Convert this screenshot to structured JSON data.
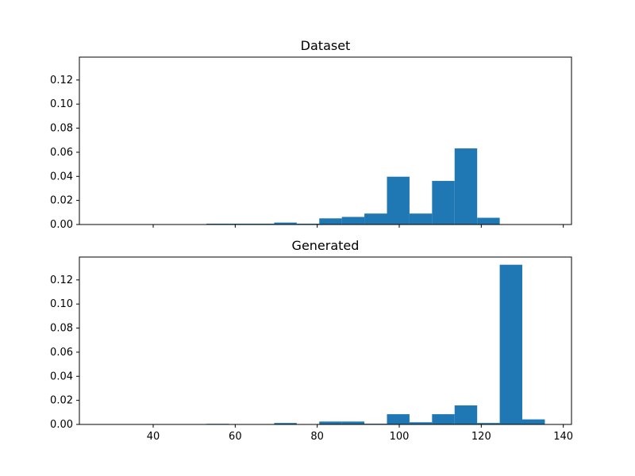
{
  "chart_data": [
    {
      "type": "bar",
      "title": "Dataset",
      "xlim": [
        22,
        142
      ],
      "ylim": [
        0,
        0.139
      ],
      "x_ticks": [
        40,
        60,
        80,
        100,
        120,
        140
      ],
      "x_tick_labels_visible": false,
      "y_ticks": [
        0.0,
        0.02,
        0.04,
        0.06,
        0.08,
        0.1,
        0.12
      ],
      "y_tick_labels": [
        "0.00",
        "0.02",
        "0.04",
        "0.06",
        "0.08",
        "0.10",
        "0.12"
      ],
      "bin_edges": [
        31.0,
        36.5,
        42.0,
        47.5,
        53.0,
        58.5,
        64.0,
        69.5,
        75.0,
        80.5,
        86.0,
        91.5,
        97.0,
        102.5,
        108.0,
        113.5,
        119.0,
        124.5,
        130.0,
        135.5
      ],
      "values": [
        0.0,
        0.0,
        0.0,
        0.0,
        0.0007,
        0.0007,
        0.0007,
        0.0016,
        0.0007,
        0.0051,
        0.0063,
        0.0091,
        0.0397,
        0.0091,
        0.0362,
        0.0632,
        0.0056,
        0.0,
        0.0
      ],
      "color": "#1f77b4",
      "grid": false
    },
    {
      "type": "bar",
      "title": "Generated",
      "xlim": [
        22,
        142
      ],
      "ylim": [
        0,
        0.139
      ],
      "x_ticks": [
        40,
        60,
        80,
        100,
        120,
        140
      ],
      "x_tick_labels": [
        "40",
        "60",
        "80",
        "100",
        "120",
        "140"
      ],
      "y_ticks": [
        0.0,
        0.02,
        0.04,
        0.06,
        0.08,
        0.1,
        0.12
      ],
      "y_tick_labels": [
        "0.00",
        "0.02",
        "0.04",
        "0.06",
        "0.08",
        "0.10",
        "0.12"
      ],
      "bin_edges": [
        31.0,
        36.5,
        42.0,
        47.5,
        53.0,
        58.5,
        64.0,
        69.5,
        75.0,
        80.5,
        86.0,
        91.5,
        97.0,
        102.5,
        108.0,
        113.5,
        119.0,
        124.5,
        130.0,
        135.5
      ],
      "values": [
        0.0,
        0.0,
        0.0,
        0.0,
        0.0005,
        0.0,
        0.0,
        0.0012,
        0.0,
        0.0024,
        0.0024,
        0.0006,
        0.0085,
        0.0018,
        0.0085,
        0.0158,
        0.0012,
        0.1326,
        0.0042
      ],
      "color": "#1f77b4",
      "grid": false
    }
  ]
}
